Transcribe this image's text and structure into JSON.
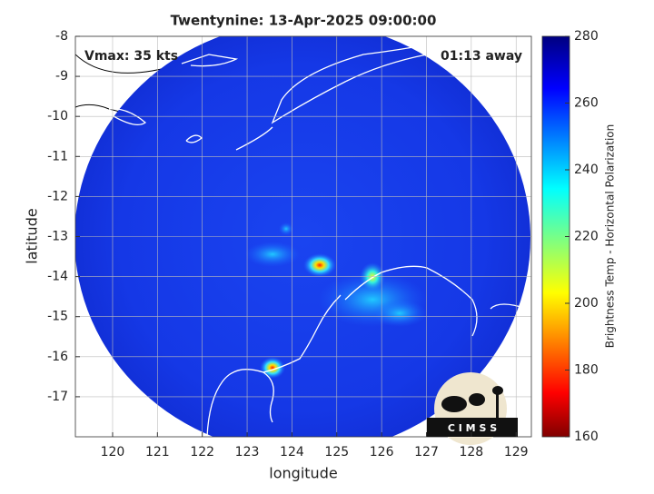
{
  "title": "Twentynine: 13-Apr-2025 09:00:00",
  "annotations": {
    "vmax": "Vmax: 35 kts",
    "away": "01:13 away",
    "logo": "C I M S S"
  },
  "x_label": "longitude",
  "y_label": "latitude",
  "xlim": [
    119.17,
    129.34
  ],
  "xticks": [
    120,
    121,
    122,
    123,
    124,
    125,
    126,
    127,
    128,
    129
  ],
  "ylim": [
    -18,
    -8
  ],
  "yticks": [
    -8,
    -9,
    -10,
    -11,
    -12,
    -13,
    -14,
    -15,
    -16,
    -17
  ],
  "colorbar": {
    "label": "Brightness Temp - Horizontal Polarization",
    "lim": [
      160,
      280
    ],
    "ticks": [
      280,
      260,
      240,
      220,
      200,
      180,
      160
    ]
  }
}
